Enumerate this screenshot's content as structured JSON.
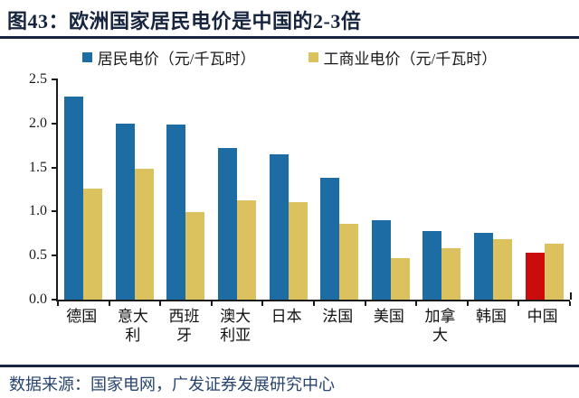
{
  "title": "图43：欧洲国家居民电价是中国的2-3倍",
  "legend": [
    {
      "label": "居民电价（元/千瓦时）",
      "color": "#1E6CA4"
    },
    {
      "label": "工商业电价（元/千瓦时）",
      "color": "#DCC25F"
    }
  ],
  "footer": {
    "source_text": "数据来源：国家电网，广发证券发展研究中心"
  },
  "colors": {
    "residential_blue": "#1E6CA4",
    "industrial_yellow": "#DCC25F",
    "china_highlight_red": "#C90D0D",
    "title_navy": "#16243E",
    "footer_navy": "#27456E",
    "axis_black": "#1A1A1A"
  },
  "chart_data": {
    "type": "bar",
    "title": "欧洲国家居民电价是中国的2-3倍",
    "categories": [
      "德国",
      "意大利",
      "西班牙",
      "澳大利亚",
      "日本",
      "法国",
      "美国",
      "加拿大",
      "韩国",
      "中国"
    ],
    "series": [
      {
        "name": "居民电价（元/千瓦时）",
        "color": "#1E6CA4",
        "values": [
          2.31,
          2.0,
          1.99,
          1.72,
          1.65,
          1.38,
          0.9,
          0.78,
          0.76,
          0.53
        ]
      },
      {
        "name": "工商业电价（元/千瓦时）",
        "color": "#DCC25F",
        "values": [
          1.26,
          1.49,
          0.99,
          1.13,
          1.11,
          0.86,
          0.47,
          0.58,
          0.69,
          0.64
        ]
      }
    ],
    "highlight": {
      "category": "中国",
      "series_index": 0,
      "color": "#C90D0D"
    },
    "xlabel": "",
    "ylabel": "",
    "ylim": [
      0,
      2.5
    ],
    "yticks": [
      "2.5",
      "2.0",
      "1.5",
      "1.0",
      "0.5",
      "0.0"
    ],
    "grid": false,
    "legend_position": "top"
  }
}
